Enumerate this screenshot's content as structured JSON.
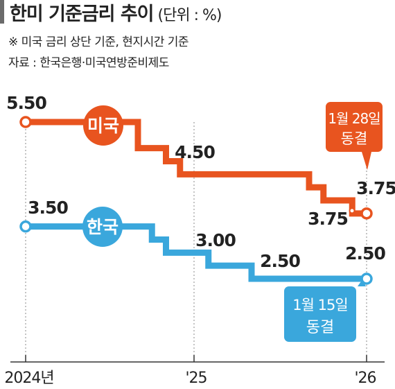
{
  "header": {
    "title": "한미 기준금리 추이",
    "unit": "(단위 : %)",
    "note": "※ 미국 금리 상단 기준, 현지시간 기준",
    "source": "자료 : 한국은행·미국연방준비제도"
  },
  "colors": {
    "us": "#e8541f",
    "kr": "#3aa7dc",
    "text": "#222222",
    "axis": "#888888"
  },
  "chart_data": {
    "type": "line",
    "step": true,
    "x_tick_labels": [
      "2024년",
      "'25",
      "'26"
    ],
    "ylim": [
      2.0,
      6.0
    ],
    "series": [
      {
        "name": "미국",
        "color": "#e8541f",
        "points": [
          {
            "x": "2024-01",
            "y": 5.5
          },
          {
            "x": "2024-09",
            "y": 5.0
          },
          {
            "x": "2024-11",
            "y": 4.75
          },
          {
            "x": "2024-12",
            "y": 4.5
          },
          {
            "x": "2025-09",
            "y": 4.25
          },
          {
            "x": "2025-10",
            "y": 4.0
          },
          {
            "x": "2025-12",
            "y": 3.75
          },
          {
            "x": "2026-01",
            "y": 3.75
          }
        ],
        "labeled_values": [
          "5.50",
          "4.50",
          "3.75",
          "3.75"
        ]
      },
      {
        "name": "한국",
        "color": "#3aa7dc",
        "points": [
          {
            "x": "2024-01",
            "y": 3.5
          },
          {
            "x": "2024-10",
            "y": 3.25
          },
          {
            "x": "2024-11",
            "y": 3.0
          },
          {
            "x": "2025-02",
            "y": 2.75
          },
          {
            "x": "2025-05",
            "y": 2.5
          },
          {
            "x": "2026-01",
            "y": 2.5
          }
        ],
        "labeled_values": [
          "3.50",
          "3.00",
          "2.50",
          "2.50"
        ]
      }
    ],
    "annotations": [
      {
        "series": "미국",
        "lines": [
          "1월 28일",
          "동결"
        ]
      },
      {
        "series": "한국",
        "lines": [
          "1월 15일",
          "동결"
        ]
      }
    ]
  }
}
